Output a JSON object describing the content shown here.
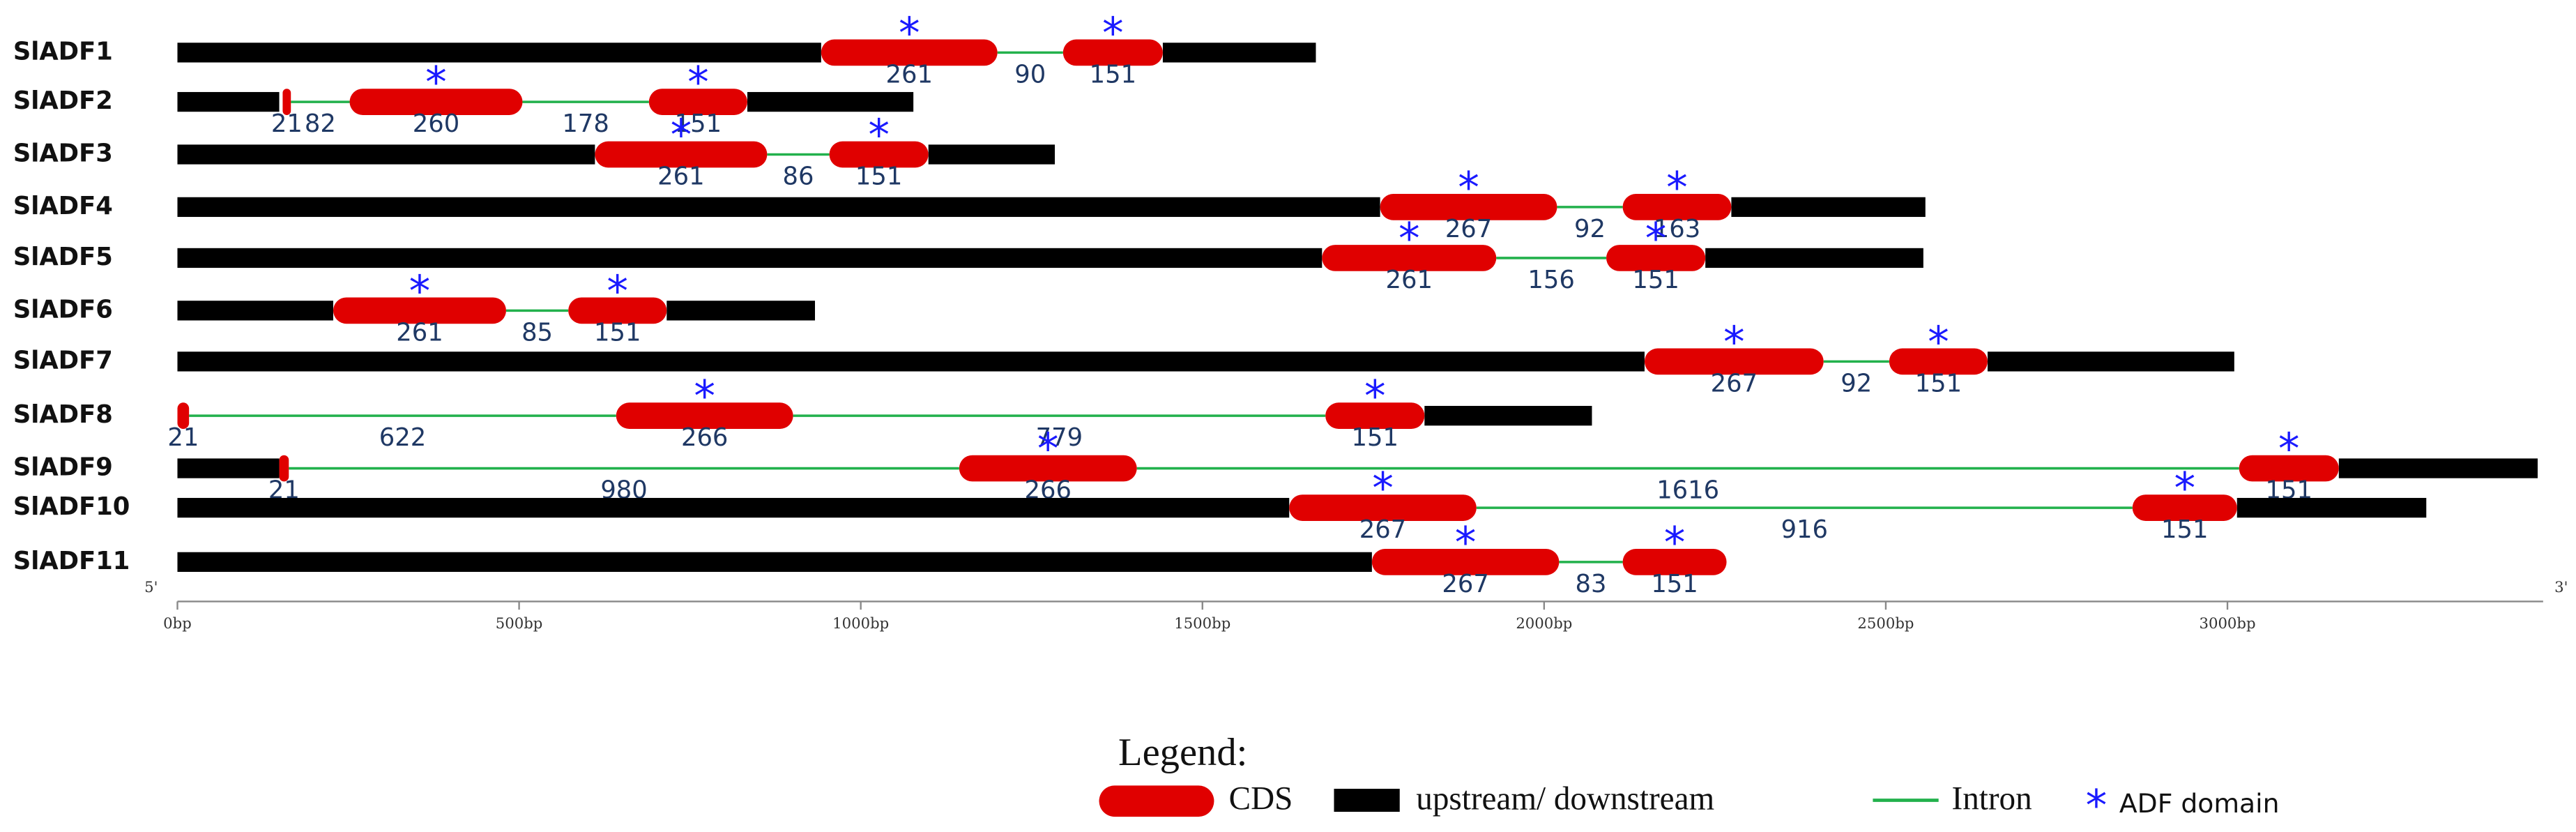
{
  "axis": {
    "xlim": [
      0,
      3462
    ],
    "ticks": [
      {
        "value": 0,
        "label": "0bp"
      },
      {
        "value": 500,
        "label": "500bp"
      },
      {
        "value": 1000,
        "label": "1000bp"
      },
      {
        "value": 1500,
        "label": "1500bp"
      },
      {
        "value": 2000,
        "label": "2000bp"
      },
      {
        "value": 2500,
        "label": "2500bp"
      },
      {
        "value": 3000,
        "label": "3000bp"
      }
    ],
    "left_end": "5'",
    "right_end": "3'"
  },
  "genes": [
    {
      "name": "SlADF1",
      "segments": [
        {
          "kind": "utr",
          "start": 0,
          "end": 942
        },
        {
          "kind": "cds",
          "start": 942,
          "end": 1200,
          "label": "261",
          "domain": true
        },
        {
          "kind": "intron",
          "start": 1200,
          "end": 1296,
          "label": "90"
        },
        {
          "kind": "cds",
          "start": 1296,
          "end": 1442,
          "label": "151",
          "domain": true
        },
        {
          "kind": "utr",
          "start": 1442,
          "end": 1666
        }
      ]
    },
    {
      "name": "SlADF2",
      "segments": [
        {
          "kind": "utr",
          "start": 0,
          "end": 149
        },
        {
          "kind": "cds",
          "start": 154,
          "end": 166,
          "label": "21",
          "domain": false
        },
        {
          "kind": "intron",
          "start": 166,
          "end": 252,
          "label": "82"
        },
        {
          "kind": "cds",
          "start": 252,
          "end": 505,
          "label": "260",
          "domain": true
        },
        {
          "kind": "intron",
          "start": 505,
          "end": 690,
          "label": "178"
        },
        {
          "kind": "cds",
          "start": 690,
          "end": 834,
          "label": "151",
          "domain": true
        },
        {
          "kind": "utr",
          "start": 834,
          "end": 1077
        }
      ]
    },
    {
      "name": "SlADF3",
      "segments": [
        {
          "kind": "utr",
          "start": 0,
          "end": 611
        },
        {
          "kind": "cds",
          "start": 611,
          "end": 863,
          "label": "261",
          "domain": true
        },
        {
          "kind": "intron",
          "start": 863,
          "end": 954,
          "label": "86"
        },
        {
          "kind": "cds",
          "start": 954,
          "end": 1099,
          "label": "151",
          "domain": true
        },
        {
          "kind": "utr",
          "start": 1099,
          "end": 1284
        }
      ]
    },
    {
      "name": "SlADF4",
      "segments": [
        {
          "kind": "utr",
          "start": 0,
          "end": 1760
        },
        {
          "kind": "cds",
          "start": 1760,
          "end": 2019,
          "label": "267",
          "domain": true
        },
        {
          "kind": "intron",
          "start": 2019,
          "end": 2115,
          "label": "92"
        },
        {
          "kind": "cds",
          "start": 2115,
          "end": 2274,
          "label": "163",
          "domain": true
        },
        {
          "kind": "utr",
          "start": 2274,
          "end": 2558
        }
      ]
    },
    {
      "name": "SlADF5",
      "segments": [
        {
          "kind": "utr",
          "start": 0,
          "end": 1675
        },
        {
          "kind": "cds",
          "start": 1675,
          "end": 1930,
          "label": "261",
          "domain": true
        },
        {
          "kind": "intron",
          "start": 1930,
          "end": 2091,
          "label": "156"
        },
        {
          "kind": "cds",
          "start": 2091,
          "end": 2236,
          "label": "151",
          "domain": true
        },
        {
          "kind": "utr",
          "start": 2236,
          "end": 2555
        }
      ]
    },
    {
      "name": "SlADF6",
      "segments": [
        {
          "kind": "utr",
          "start": 0,
          "end": 228
        },
        {
          "kind": "cds",
          "start": 228,
          "end": 481,
          "label": "261",
          "domain": true
        },
        {
          "kind": "intron",
          "start": 481,
          "end": 572,
          "label": "85"
        },
        {
          "kind": "cds",
          "start": 572,
          "end": 716,
          "label": "151",
          "domain": true
        },
        {
          "kind": "utr",
          "start": 716,
          "end": 933
        }
      ]
    },
    {
      "name": "SlADF7",
      "segments": [
        {
          "kind": "utr",
          "start": 0,
          "end": 2147
        },
        {
          "kind": "cds",
          "start": 2147,
          "end": 2409,
          "label": "267",
          "domain": true
        },
        {
          "kind": "intron",
          "start": 2409,
          "end": 2505,
          "label": "92"
        },
        {
          "kind": "cds",
          "start": 2505,
          "end": 2649,
          "label": "151",
          "domain": true
        },
        {
          "kind": "utr",
          "start": 2649,
          "end": 3010
        }
      ]
    },
    {
      "name": "SlADF8",
      "segments": [
        {
          "kind": "cds",
          "start": 0,
          "end": 17,
          "label": "21",
          "domain": false
        },
        {
          "kind": "intron",
          "start": 17,
          "end": 642,
          "label": "622"
        },
        {
          "kind": "cds",
          "start": 642,
          "end": 901,
          "label": "266",
          "domain": true
        },
        {
          "kind": "intron",
          "start": 901,
          "end": 1680,
          "label": "779"
        },
        {
          "kind": "cds",
          "start": 1680,
          "end": 1825,
          "label": "151",
          "domain": true
        },
        {
          "kind": "utr",
          "start": 1825,
          "end": 2070
        }
      ]
    },
    {
      "name": "SlADF9",
      "segments": [
        {
          "kind": "utr",
          "start": 0,
          "end": 149
        },
        {
          "kind": "cds",
          "start": 149,
          "end": 163,
          "label": "21",
          "domain": false
        },
        {
          "kind": "intron",
          "start": 163,
          "end": 1144,
          "label": "980"
        },
        {
          "kind": "cds",
          "start": 1144,
          "end": 1404,
          "label": "266",
          "domain": true
        },
        {
          "kind": "intron",
          "start": 1404,
          "end": 3017,
          "label": "1616"
        },
        {
          "kind": "cds",
          "start": 3017,
          "end": 3163,
          "label": "151",
          "domain": true
        },
        {
          "kind": "utr",
          "start": 3163,
          "end": 3454
        }
      ]
    },
    {
      "name": "SlADF10",
      "segments": [
        {
          "kind": "utr",
          "start": 0,
          "end": 1627
        },
        {
          "kind": "cds",
          "start": 1627,
          "end": 1901,
          "label": "267",
          "domain": true
        },
        {
          "kind": "intron",
          "start": 1901,
          "end": 2861,
          "label": "916"
        },
        {
          "kind": "cds",
          "start": 2861,
          "end": 3014,
          "label": "151",
          "domain": true
        },
        {
          "kind": "utr",
          "start": 3014,
          "end": 3291
        }
      ]
    },
    {
      "name": "SlADF11",
      "segments": [
        {
          "kind": "utr",
          "start": 0,
          "end": 1748
        },
        {
          "kind": "cds",
          "start": 1748,
          "end": 2022,
          "label": "267",
          "domain": true
        },
        {
          "kind": "intron",
          "start": 2022,
          "end": 2115,
          "label": "83"
        },
        {
          "kind": "cds",
          "start": 2115,
          "end": 2267,
          "label": "151",
          "domain": true
        }
      ]
    }
  ],
  "legend": {
    "title": "Legend:",
    "cds": "CDS",
    "utr": "upstream/ downstream",
    "intron": "Intron",
    "domain": "ADF domain",
    "domain_symbol": "*"
  }
}
